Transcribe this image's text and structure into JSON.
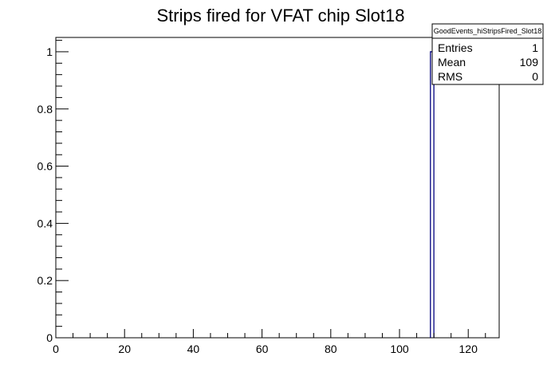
{
  "chart_data": {
    "type": "bar",
    "title": "Strips fired for VFAT chip Slot18",
    "xlabel": "",
    "ylabel": "",
    "xlim": [
      0,
      129
    ],
    "ylim": [
      0,
      1.05
    ],
    "xticks": [
      0,
      20,
      40,
      60,
      80,
      100,
      120
    ],
    "yticks": [
      0,
      0.2,
      0.4,
      0.6,
      0.8,
      1
    ],
    "x_tick_labels": [
      "0",
      "20",
      "40",
      "60",
      "80",
      "100",
      "120"
    ],
    "y_tick_labels": [
      "0",
      "0.2",
      "0.4",
      "0.6",
      "0.8",
      "1"
    ],
    "bin_width": 1,
    "bins": [
      {
        "x_low": 109,
        "x_high": 110,
        "value": 1
      }
    ],
    "grid": false,
    "bar_color": "#000080"
  },
  "stats_box": {
    "name": "GoodEvents_hiStripsFired_Slot18",
    "entries_label": "Entries",
    "entries_value": "1",
    "mean_label": "Mean",
    "mean_value": "109",
    "rms_label": "RMS",
    "rms_value": "0"
  }
}
